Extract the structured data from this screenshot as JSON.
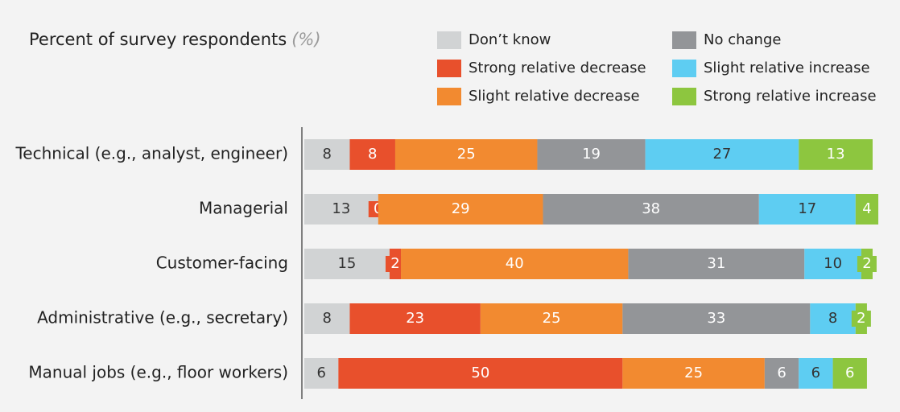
{
  "chart_data": {
    "type": "stacked-bar-horizontal",
    "title": "Percent of survey respondents",
    "unit": "(%)",
    "categories": [
      "Technical (e.g., analyst, engineer)",
      "Managerial",
      "Customer-facing",
      "Administrative (e.g., secretary)",
      "Manual jobs (e.g., floor workers)"
    ],
    "series": [
      {
        "name": "Don’t know",
        "color": "#d1d3d4",
        "label_color": "#333333",
        "values": [
          8,
          13,
          15,
          8,
          6
        ]
      },
      {
        "name": "Strong relative decrease",
        "color": "#e8502c",
        "label_color": "#ffffff",
        "values": [
          8,
          0,
          2,
          23,
          50
        ]
      },
      {
        "name": "Slight relative decrease",
        "color": "#f28a30",
        "label_color": "#ffffff",
        "values": [
          25,
          29,
          40,
          25,
          25
        ]
      },
      {
        "name": "No change",
        "color": "#939598",
        "label_color": "#ffffff",
        "values": [
          19,
          38,
          31,
          33,
          6
        ]
      },
      {
        "name": "Slight relative increase",
        "color": "#5ecdf2",
        "label_color": "#333333",
        "values": [
          27,
          17,
          10,
          8,
          6
        ]
      },
      {
        "name": "Strong relative increase",
        "color": "#8dc63f",
        "label_color": "#ffffff",
        "values": [
          13,
          4,
          2,
          2,
          6
        ]
      }
    ]
  }
}
